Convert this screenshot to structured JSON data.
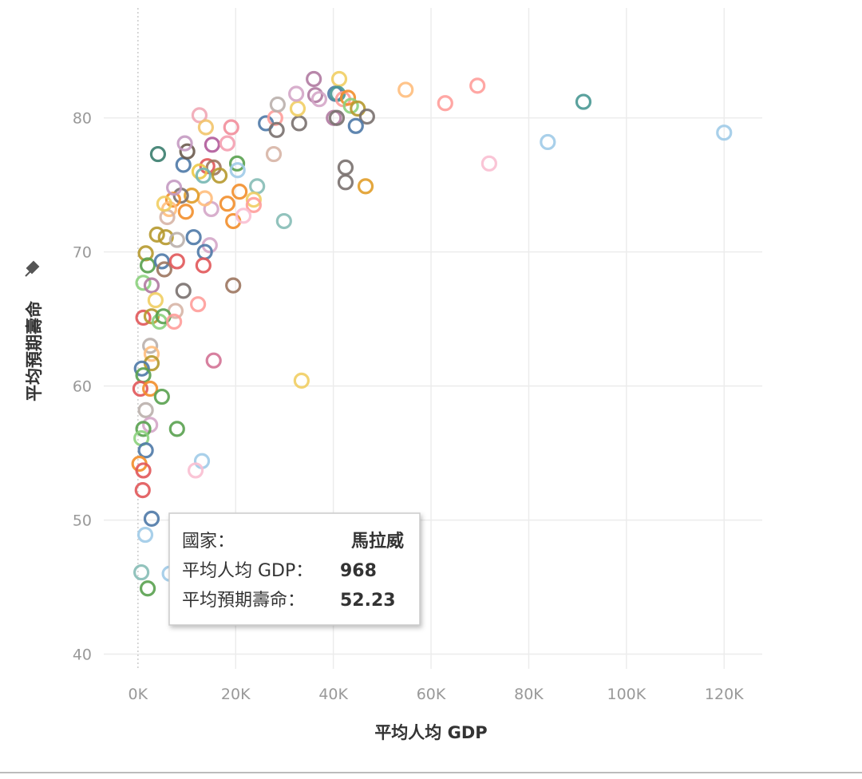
{
  "chart_data": {
    "type": "scatter",
    "x_label": "平均人均 GDP",
    "y_label": "平均預期壽命",
    "x": [
      4100,
      9300,
      10100,
      12600,
      13900,
      19100,
      15200,
      18300,
      9600,
      14200,
      15500,
      20300,
      20400,
      12600,
      16700,
      13400,
      24400,
      20800,
      23700,
      23700,
      18300,
      15000,
      13700,
      11000,
      8800,
      7200,
      6400,
      9800,
      6000,
      19500,
      21600,
      29900,
      3900,
      5700,
      8000,
      11400,
      14700,
      13700,
      1600,
      2000,
      4900,
      5400,
      8000,
      13400,
      1100,
      2800,
      9300,
      19500,
      3600,
      7700,
      12300,
      1100,
      2800,
      4400,
      5200,
      7400,
      2500,
      2800,
      2800,
      15500,
      800,
      1100,
      500,
      2500,
      4900,
      33500,
      1600,
      2500,
      1100,
      8000,
      700,
      1600,
      300,
      1100,
      13100,
      11800,
      968,
      2800,
      1500,
      700,
      2000,
      6500,
      26200,
      28100,
      28400,
      28600,
      27800,
      33000,
      32700,
      32400,
      36000,
      36300,
      37100,
      41200,
      40400,
      40900,
      42000,
      43000,
      43600,
      40100,
      40700,
      45000,
      46900,
      44600,
      42500,
      42500,
      46600,
      54800,
      62900,
      69500,
      71900,
      83900,
      91200,
      120000,
      7400,
      5400
    ],
    "y": [
      77.3,
      76.5,
      77.5,
      80.2,
      79.3,
      79.3,
      78,
      78.1,
      78.1,
      76.4,
      76.3,
      76.6,
      76.1,
      76,
      75.7,
      75.7,
      74.9,
      74.5,
      73.9,
      73.5,
      73.6,
      73.2,
      74,
      74.2,
      74.2,
      73.9,
      73.2,
      73,
      72.6,
      72.3,
      72.7,
      72.3,
      71.3,
      71.1,
      70.9,
      71.1,
      70.5,
      70,
      69.9,
      69,
      69.3,
      68.7,
      69.3,
      69,
      67.7,
      67.5,
      67.1,
      67.5,
      66.4,
      65.6,
      66.1,
      65.1,
      65.2,
      64.8,
      65.2,
      64.8,
      63,
      62.4,
      61.7,
      61.9,
      61.3,
      60.8,
      59.8,
      59.8,
      59.2,
      60.4,
      58.2,
      57.1,
      56.8,
      56.8,
      56.1,
      55.2,
      54.2,
      53.7,
      54.4,
      53.7,
      52.23,
      50.1,
      48.9,
      46.1,
      44.9,
      46,
      79.6,
      80,
      79.1,
      81,
      77.3,
      79.6,
      80.7,
      81.8,
      82.9,
      81.7,
      81.4,
      82.9,
      81.8,
      81.8,
      81.4,
      81.5,
      80.9,
      80,
      80,
      80.7,
      80.1,
      79.4,
      76.3,
      75.2,
      74.9,
      82.1,
      81.1,
      82.4,
      76.6,
      78.2,
      81.2,
      78.9,
      74.8,
      73.6
    ],
    "colors": [
      "#3a7d6e",
      "#4e79a7",
      "#6b5b4e",
      "#f1a7b5",
      "#f2c46b",
      "#f28e9b",
      "#b05a9a",
      "#f4a0b0",
      "#c49ac2",
      "#e15759",
      "#9c755f",
      "#59a14f",
      "#a0cbe8",
      "#edc948",
      "#b6992d",
      "#76b7b2",
      "#86bcb6",
      "#f28e2b",
      "#f1ce63",
      "#ff9d9a",
      "#f28e2b",
      "#d4a6c8",
      "#ffbe7d",
      "#e19d29",
      "#79706e",
      "#f28e2b",
      "#ffbe7d",
      "#f28e2b",
      "#d7b5a6",
      "#f28e2b",
      "#fabfd2",
      "#86bcb6",
      "#b6992d",
      "#b6992d",
      "#bab0ac",
      "#4e79a7",
      "#d4a6c8",
      "#4e79a7",
      "#b6992d",
      "#59a14f",
      "#4e79a7",
      "#9c755f",
      "#e15759",
      "#e15759",
      "#8cd17d",
      "#b07aa1",
      "#79706e",
      "#9c755f",
      "#f1ce63",
      "#d7b5a6",
      "#ff9d9a",
      "#e15759",
      "#b6992d",
      "#8cd17d",
      "#59a14f",
      "#ff9d9a",
      "#bab0ac",
      "#ffbe7d",
      "#b6992d",
      "#d37295",
      "#4e79a7",
      "#59a14f",
      "#e15759",
      "#f28e2b",
      "#59a14f",
      "#f1ce63",
      "#bab0ac",
      "#d4a6c8",
      "#59a14f",
      "#59a14f",
      "#8cd17d",
      "#4e79a7",
      "#f28e2b",
      "#e15759",
      "#a0cbe8",
      "#fabfd2",
      "#e15759",
      "#4e79a7",
      "#a0cbe8",
      "#86bcb6",
      "#59a14f",
      "#a0cbe8",
      "#4e79a7",
      "#ff9d9a",
      "#79706e",
      "#bab0ac",
      "#d7b5a6",
      "#79706e",
      "#f1ce63",
      "#d4a6c8",
      "#b07aa1",
      "#b07aa1",
      "#d4a6c8",
      "#f1ce63",
      "#4e79a7",
      "#499894",
      "#ff9d9a",
      "#f28e2b",
      "#8cd17d",
      "#b07aa1",
      "#79706e",
      "#b6992d",
      "#79706e",
      "#4e79a7",
      "#79706e",
      "#79706e",
      "#e19d29",
      "#ffbe7d",
      "#ff9d9a",
      "#ff9d9a",
      "#fabfd2",
      "#a0cbe8",
      "#499894",
      "#a0cbe8",
      "#c49ac2",
      "#f1ce63"
    ],
    "xlim": [
      -7000,
      127800
    ],
    "ylim": [
      38.9,
      88.2
    ],
    "xticks": [
      {
        "value": 0,
        "label": "0K"
      },
      {
        "value": 20000,
        "label": "20K"
      },
      {
        "value": 40000,
        "label": "40K"
      },
      {
        "value": 60000,
        "label": "60K"
      },
      {
        "value": 80000,
        "label": "80K"
      },
      {
        "value": 100000,
        "label": "100K"
      },
      {
        "value": 120000,
        "label": "120K"
      }
    ],
    "yticks": [
      40,
      50,
      60,
      70,
      80
    ],
    "grid": true
  },
  "tooltip": {
    "rows": [
      {
        "label": "國家：",
        "value": "馬拉威"
      },
      {
        "label": "平均人均 GDP：",
        "value": 968
      },
      {
        "label": "平均預期壽命：",
        "value": 52.23
      }
    ]
  }
}
